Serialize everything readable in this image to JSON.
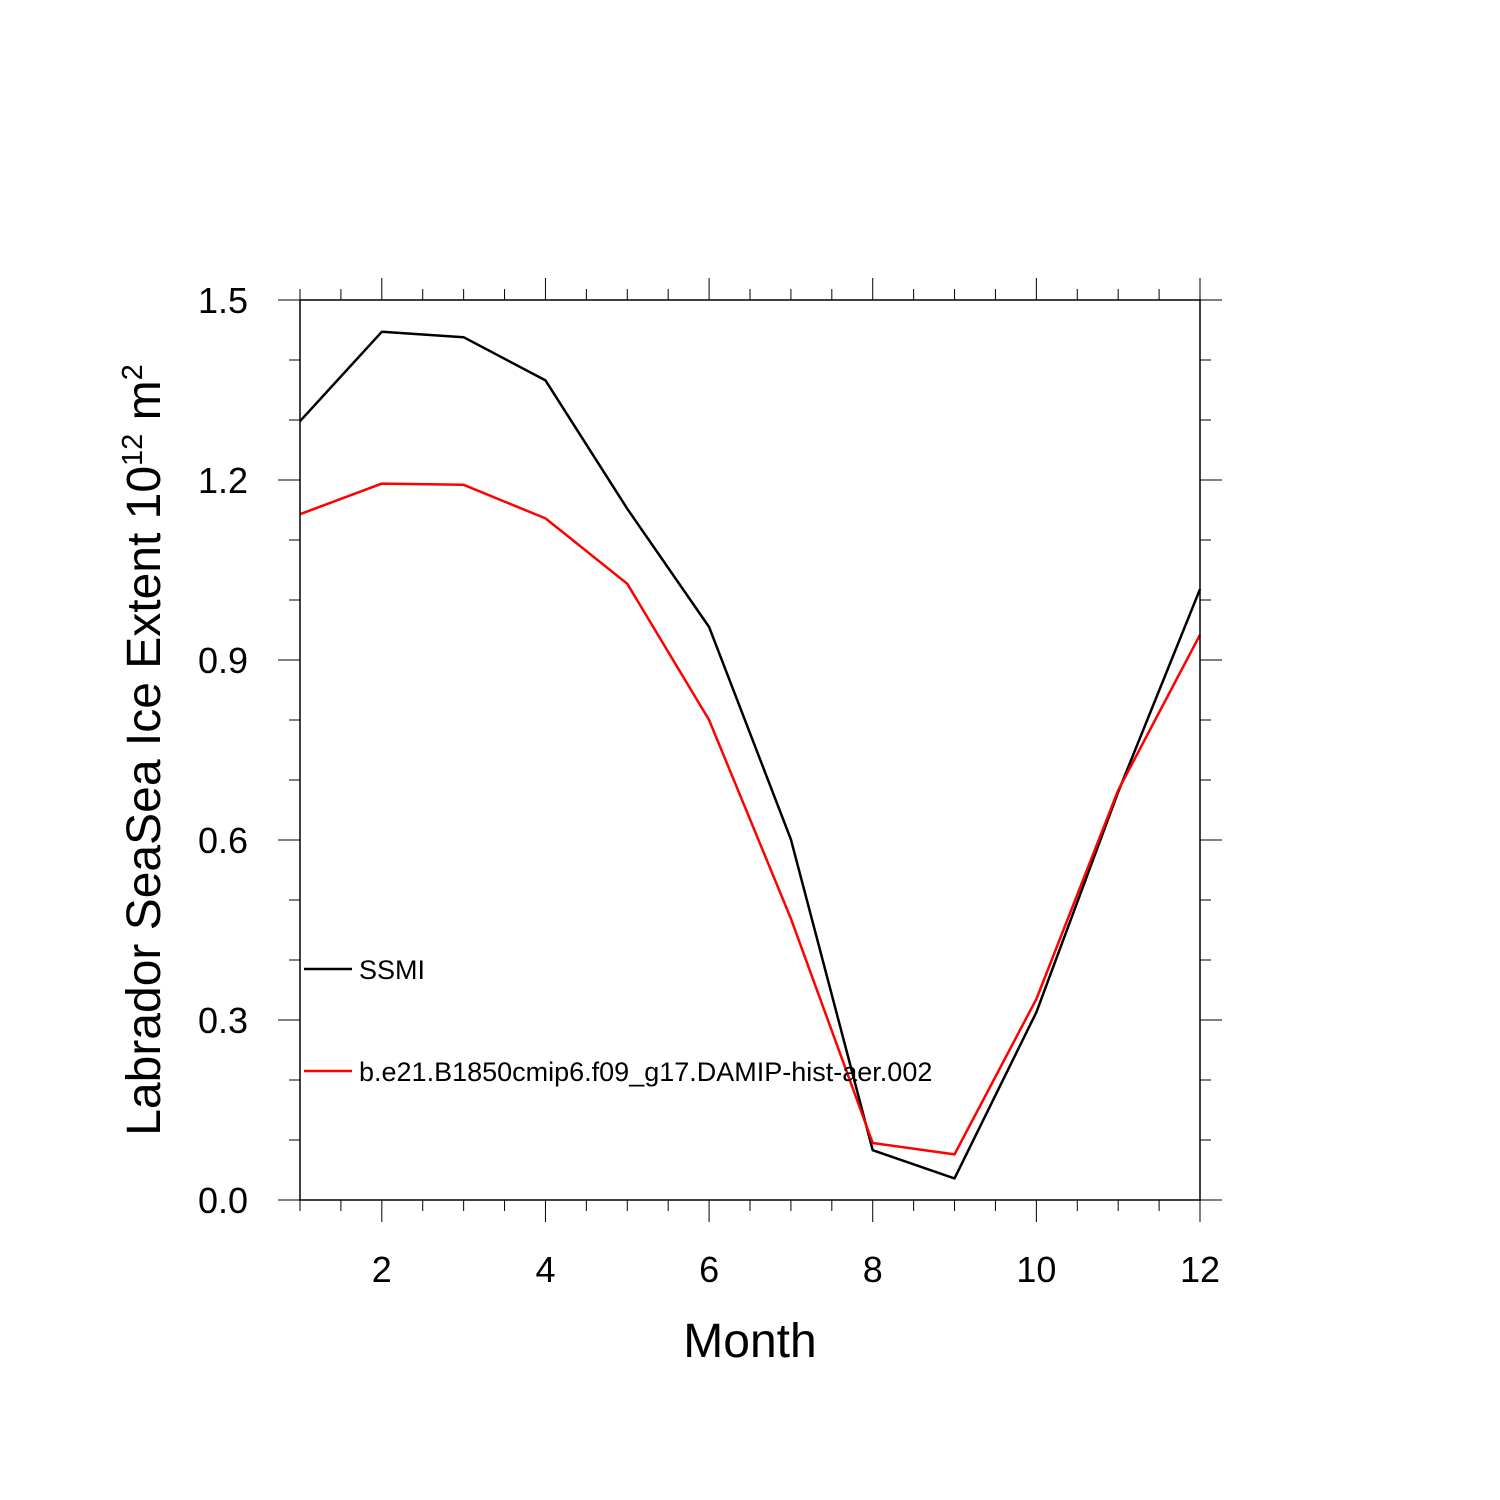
{
  "chart_data": {
    "type": "line",
    "title": "",
    "xlabel": "Month",
    "ylabel": "Labrador SeaSea Ice Extent 10",
    "ylabel_exponent": "12",
    "ylabel_unit": " m",
    "ylabel_unit_exponent": "2",
    "xlim": [
      1,
      12
    ],
    "ylim": [
      0.0,
      1.5
    ],
    "x_ticks": [
      2,
      4,
      6,
      8,
      10,
      12
    ],
    "x_tick_labels": [
      "2",
      "4",
      "6",
      "8",
      "10",
      "12"
    ],
    "y_ticks": [
      0.0,
      0.3,
      0.6,
      0.9,
      1.2,
      1.5
    ],
    "y_tick_labels": [
      "0.0",
      "0.3",
      "0.6",
      "0.9",
      "1.2",
      "1.5"
    ],
    "grid": false,
    "legend_placement": "lower-left",
    "x": [
      1,
      2,
      3,
      4,
      5,
      6,
      7,
      8,
      9,
      10,
      11,
      12
    ],
    "series": [
      {
        "name": "SSMI",
        "color": "#000000",
        "values": [
          1.298,
          1.447,
          1.438,
          1.366,
          1.152,
          0.955,
          0.601,
          0.083,
          0.036,
          0.313,
          0.68,
          1.018
        ]
      },
      {
        "name": "b.e21.B1850cmip6.f09_g17.DAMIP-hist-aer.002",
        "color": "#ff0000",
        "values": [
          1.143,
          1.194,
          1.192,
          1.136,
          1.027,
          0.8,
          0.469,
          0.095,
          0.076,
          0.335,
          0.683,
          0.942
        ]
      }
    ]
  }
}
